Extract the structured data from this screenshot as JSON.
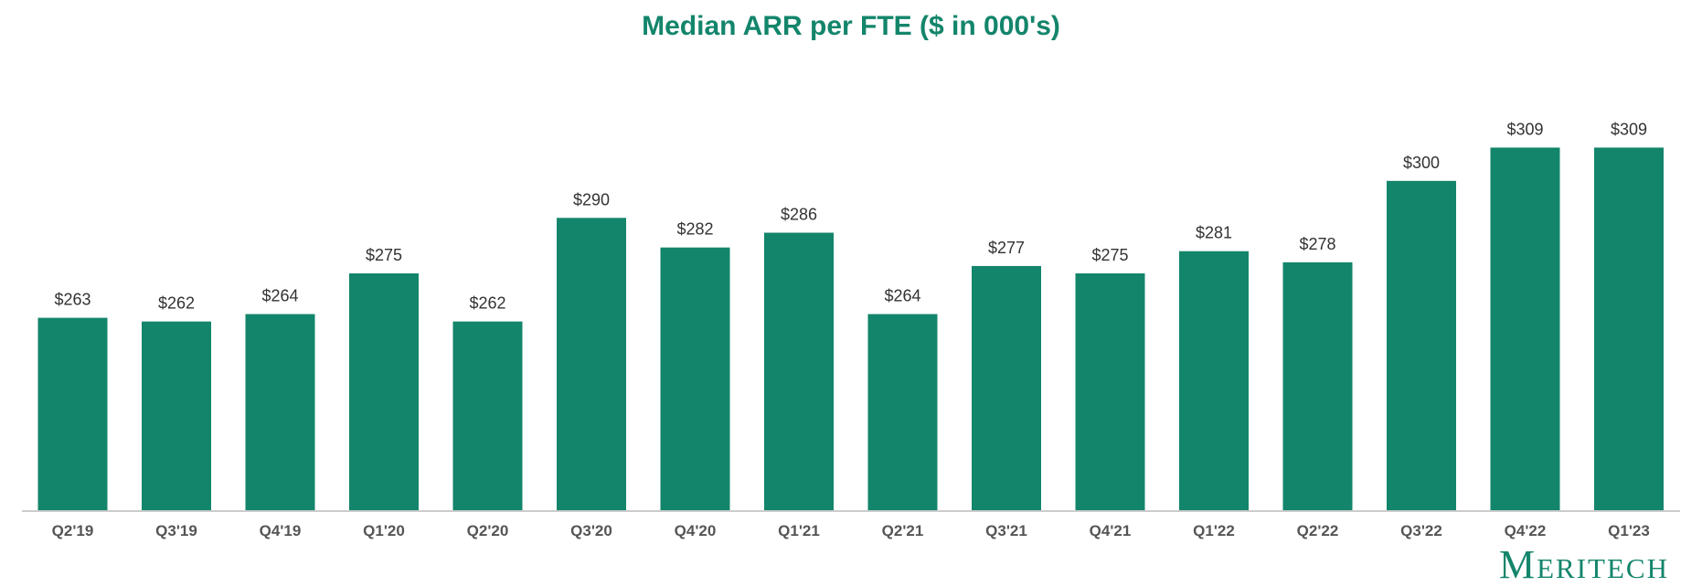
{
  "chart_data": {
    "type": "bar",
    "title": "Median ARR per FTE ($ in 000's)",
    "categories": [
      "Q2'19",
      "Q3'19",
      "Q4'19",
      "Q1'20",
      "Q2'20",
      "Q3'20",
      "Q4'20",
      "Q1'21",
      "Q2'21",
      "Q3'21",
      "Q4'21",
      "Q1'22",
      "Q2'22",
      "Q3'22",
      "Q4'22",
      "Q1'23"
    ],
    "values": [
      263,
      262,
      264,
      275,
      262,
      290,
      282,
      286,
      264,
      277,
      275,
      281,
      278,
      300,
      309,
      309
    ],
    "value_labels": [
      "$263",
      "$262",
      "$264",
      "$275",
      "$262",
      "$290",
      "$282",
      "$286",
      "$264",
      "$277",
      "$275",
      "$281",
      "$278",
      "$300",
      "$309",
      "$309"
    ],
    "xlabel": "",
    "ylabel": "",
    "ylim": [
      211,
      318
    ],
    "grid": false,
    "legend": "none",
    "bar_color": "#13856b",
    "title_color": "#13856b"
  },
  "brand": {
    "logo_text": "Meritech"
  }
}
